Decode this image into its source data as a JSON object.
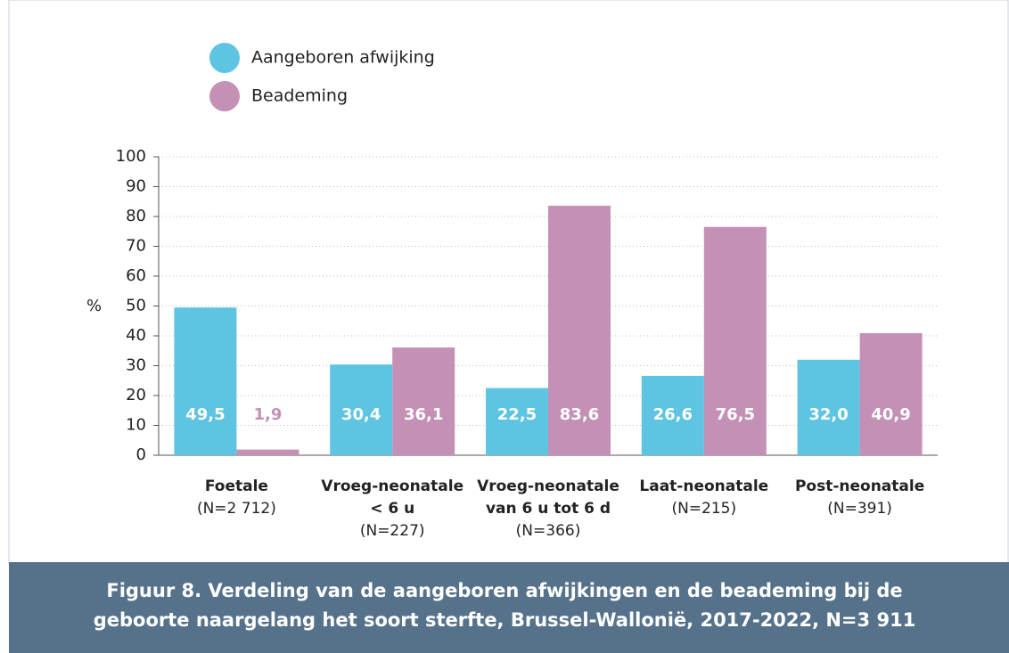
{
  "chart_data": {
    "type": "bar",
    "title": [
      "Figuur 8. Verdeling van de aangeboren afwijkingen en de beademing bij de",
      "geboorte naargelang het soort sterfte, Brussel-Wallonië, 2017-2022, N=3 911"
    ],
    "y_label": "%",
    "categories": [
      [
        "Foetale",
        "(N=2 712)"
      ],
      [
        "Vroeg-neonatale",
        "< 6 u",
        "(N=227)"
      ],
      [
        "Vroeg-neonatale",
        "van 6 u tot 6 d",
        "(N=366)"
      ],
      [
        "Laat-neonatale",
        "(N=215)"
      ],
      [
        "Post-neonatale",
        "(N=391)"
      ]
    ],
    "series": [
      {
        "name": "Aangeboren afwijking",
        "color": "#5ec4e2",
        "label_color": "#ffffff",
        "values": [
          49.5,
          30.4,
          22.5,
          26.6,
          32.0
        ],
        "value_labels": [
          "49,5",
          "30,4",
          "22,5",
          "26,6",
          "32,0"
        ]
      },
      {
        "name": "Beademing",
        "color": "#c590b6",
        "label_color": "#ffffff",
        "values": [
          1.9,
          36.1,
          83.6,
          76.5,
          40.9
        ],
        "value_labels": [
          "1,9",
          "36,1",
          "83,6",
          "76,5",
          "40,9"
        ]
      }
    ],
    "ylim": [
      0,
      100
    ],
    "yticks": [
      0,
      10,
      20,
      30,
      40,
      50,
      60,
      70,
      80,
      90,
      100
    ],
    "grid": true
  }
}
